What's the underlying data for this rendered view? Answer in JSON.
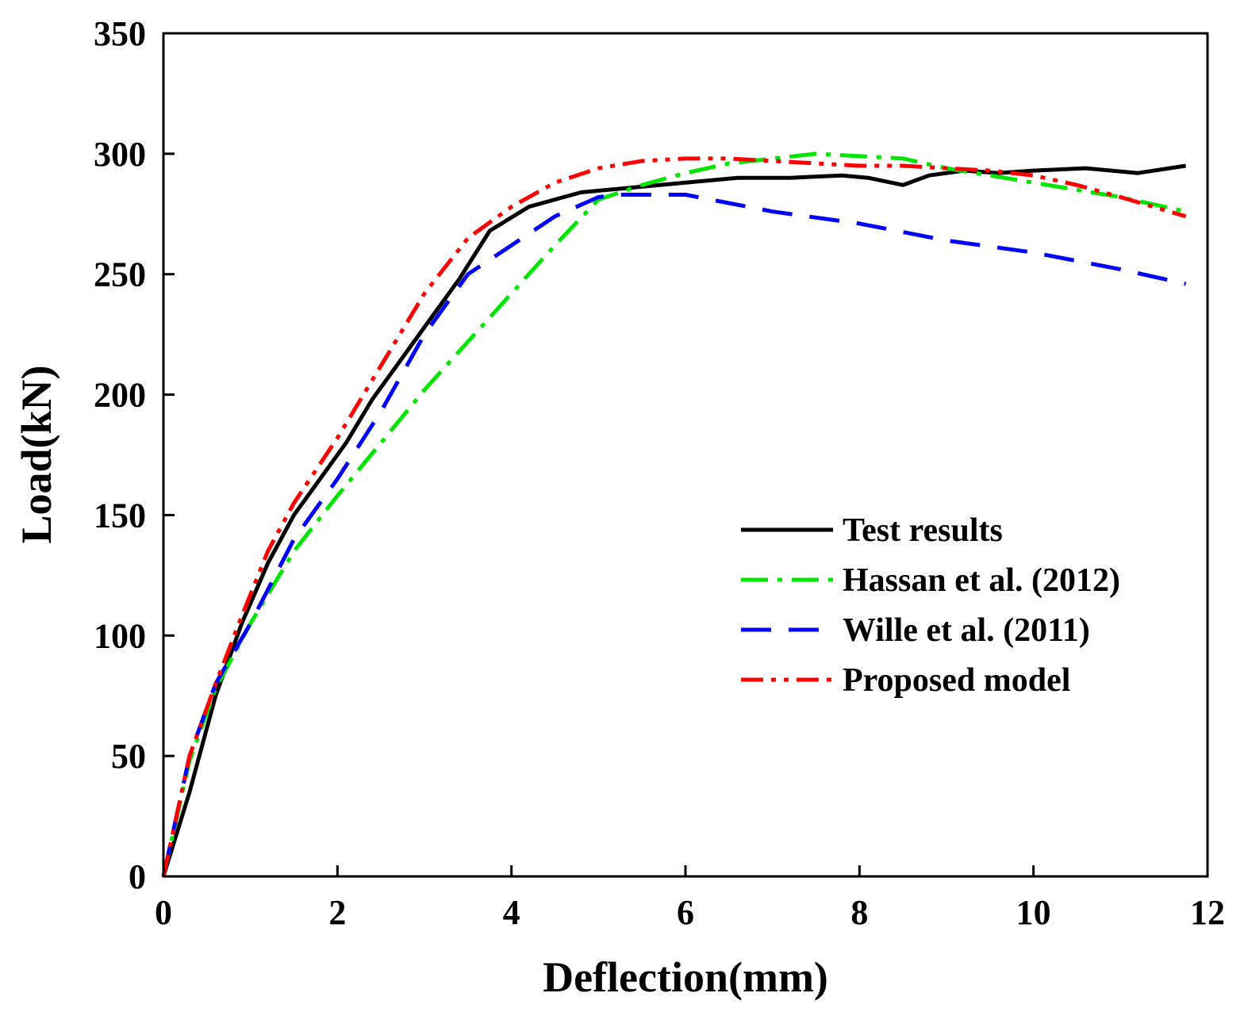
{
  "chart_data": {
    "type": "line",
    "title": "",
    "xlabel": "Deflection(mm)",
    "ylabel": "Load(kN)",
    "xlim": [
      0,
      12
    ],
    "ylim": [
      0,
      350
    ],
    "xticks": [
      0,
      2,
      4,
      6,
      8,
      10,
      12
    ],
    "yticks": [
      0,
      50,
      100,
      150,
      200,
      250,
      300,
      350
    ],
    "grid": false,
    "legend_position": "center-right",
    "series": [
      {
        "name": "Test results",
        "color": "#000000",
        "style": "solid",
        "x": [
          0,
          0.3,
          0.6,
          0.9,
          1.2,
          1.5,
          1.8,
          2.1,
          2.4,
          2.7,
          3.0,
          3.4,
          3.75,
          4.2,
          4.8,
          5.4,
          6.0,
          6.6,
          7.2,
          7.8,
          8.1,
          8.5,
          8.8,
          9.2,
          9.6,
          10.0,
          10.6,
          11.2,
          11.75
        ],
        "y": [
          0,
          35,
          75,
          105,
          130,
          150,
          165,
          180,
          198,
          213,
          228,
          248,
          268,
          278,
          284,
          286,
          288,
          290,
          290,
          291,
          290,
          287,
          291,
          293,
          292,
          293,
          294,
          292,
          295
        ]
      },
      {
        "name": "Hassan et al. (2012)",
        "color": "#00e600",
        "style": "dash-dot",
        "x": [
          0,
          0.3,
          0.6,
          1.0,
          1.5,
          2.0,
          2.5,
          3.0,
          3.5,
          4.0,
          4.5,
          5.0,
          5.5,
          6.0,
          6.5,
          7.0,
          7.5,
          8.0,
          8.5,
          9.0,
          9.5,
          10.0,
          10.5,
          11.0,
          11.75
        ],
        "y": [
          0,
          48,
          78,
          105,
          135,
          158,
          180,
          202,
          222,
          242,
          262,
          281,
          287,
          292,
          296,
          298,
          300,
          299,
          298,
          294,
          291,
          288,
          285,
          282,
          276
        ]
      },
      {
        "name": "Wille et al. (2011)",
        "color": "#0000ff",
        "style": "dashed",
        "x": [
          0,
          0.3,
          0.6,
          1.0,
          1.5,
          2.0,
          2.5,
          3.0,
          3.5,
          4.0,
          4.5,
          5.0,
          5.2,
          6.0,
          7.0,
          8.0,
          9.0,
          10.0,
          11.0,
          11.75
        ],
        "y": [
          0,
          50,
          80,
          105,
          140,
          165,
          193,
          225,
          250,
          262,
          274,
          282,
          283,
          283,
          276,
          271,
          264,
          259,
          252,
          246
        ]
      },
      {
        "name": "Proposed model",
        "color": "#ff0000",
        "style": "dash-dot-dot",
        "x": [
          0,
          0.3,
          0.6,
          0.9,
          1.2,
          1.5,
          2.0,
          2.5,
          3.0,
          3.5,
          4.0,
          4.5,
          5.0,
          5.5,
          6.0,
          6.5,
          7.0,
          7.5,
          8.0,
          8.5,
          9.0,
          9.5,
          10.0,
          10.5,
          11.0,
          11.75
        ],
        "y": [
          0,
          50,
          80,
          108,
          135,
          155,
          182,
          212,
          242,
          265,
          278,
          288,
          294,
          297,
          298,
          298,
          297,
          296,
          295,
          295,
          294,
          293,
          291,
          287,
          282,
          274
        ]
      }
    ]
  }
}
